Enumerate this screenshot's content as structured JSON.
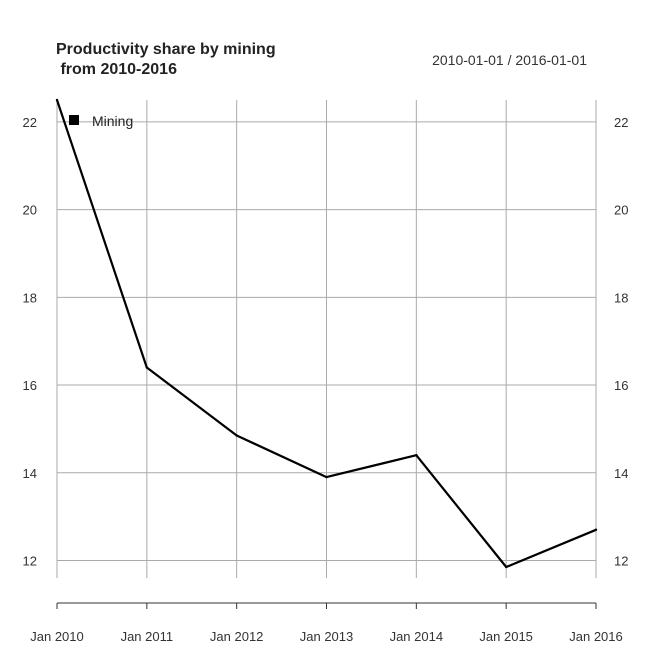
{
  "chart_data": {
    "type": "line",
    "title": "Productivity share by mining\n from 2010-2016",
    "date_range": "2010-01-01 / 2016-01-01",
    "x": [
      "2010-01-01",
      "2011-01-01",
      "2012-01-01",
      "2013-01-01",
      "2014-01-01",
      "2015-01-01",
      "2016-01-01"
    ],
    "x_tick_labels": [
      "Jan 2010",
      "Jan 2011",
      "Jan 2012",
      "Jan 2013",
      "Jan 2014",
      "Jan 2015",
      "Jan 2016"
    ],
    "series": [
      {
        "name": "Mining",
        "values": [
          22.5,
          16.4,
          14.85,
          13.9,
          14.4,
          11.85,
          12.7
        ],
        "color": "#000000"
      }
    ],
    "y_ticks": [
      12,
      14,
      16,
      18,
      20,
      22
    ],
    "ylim": [
      11.6,
      22.5
    ],
    "grid": true,
    "legend_position": "top-left",
    "axis_right": true
  }
}
